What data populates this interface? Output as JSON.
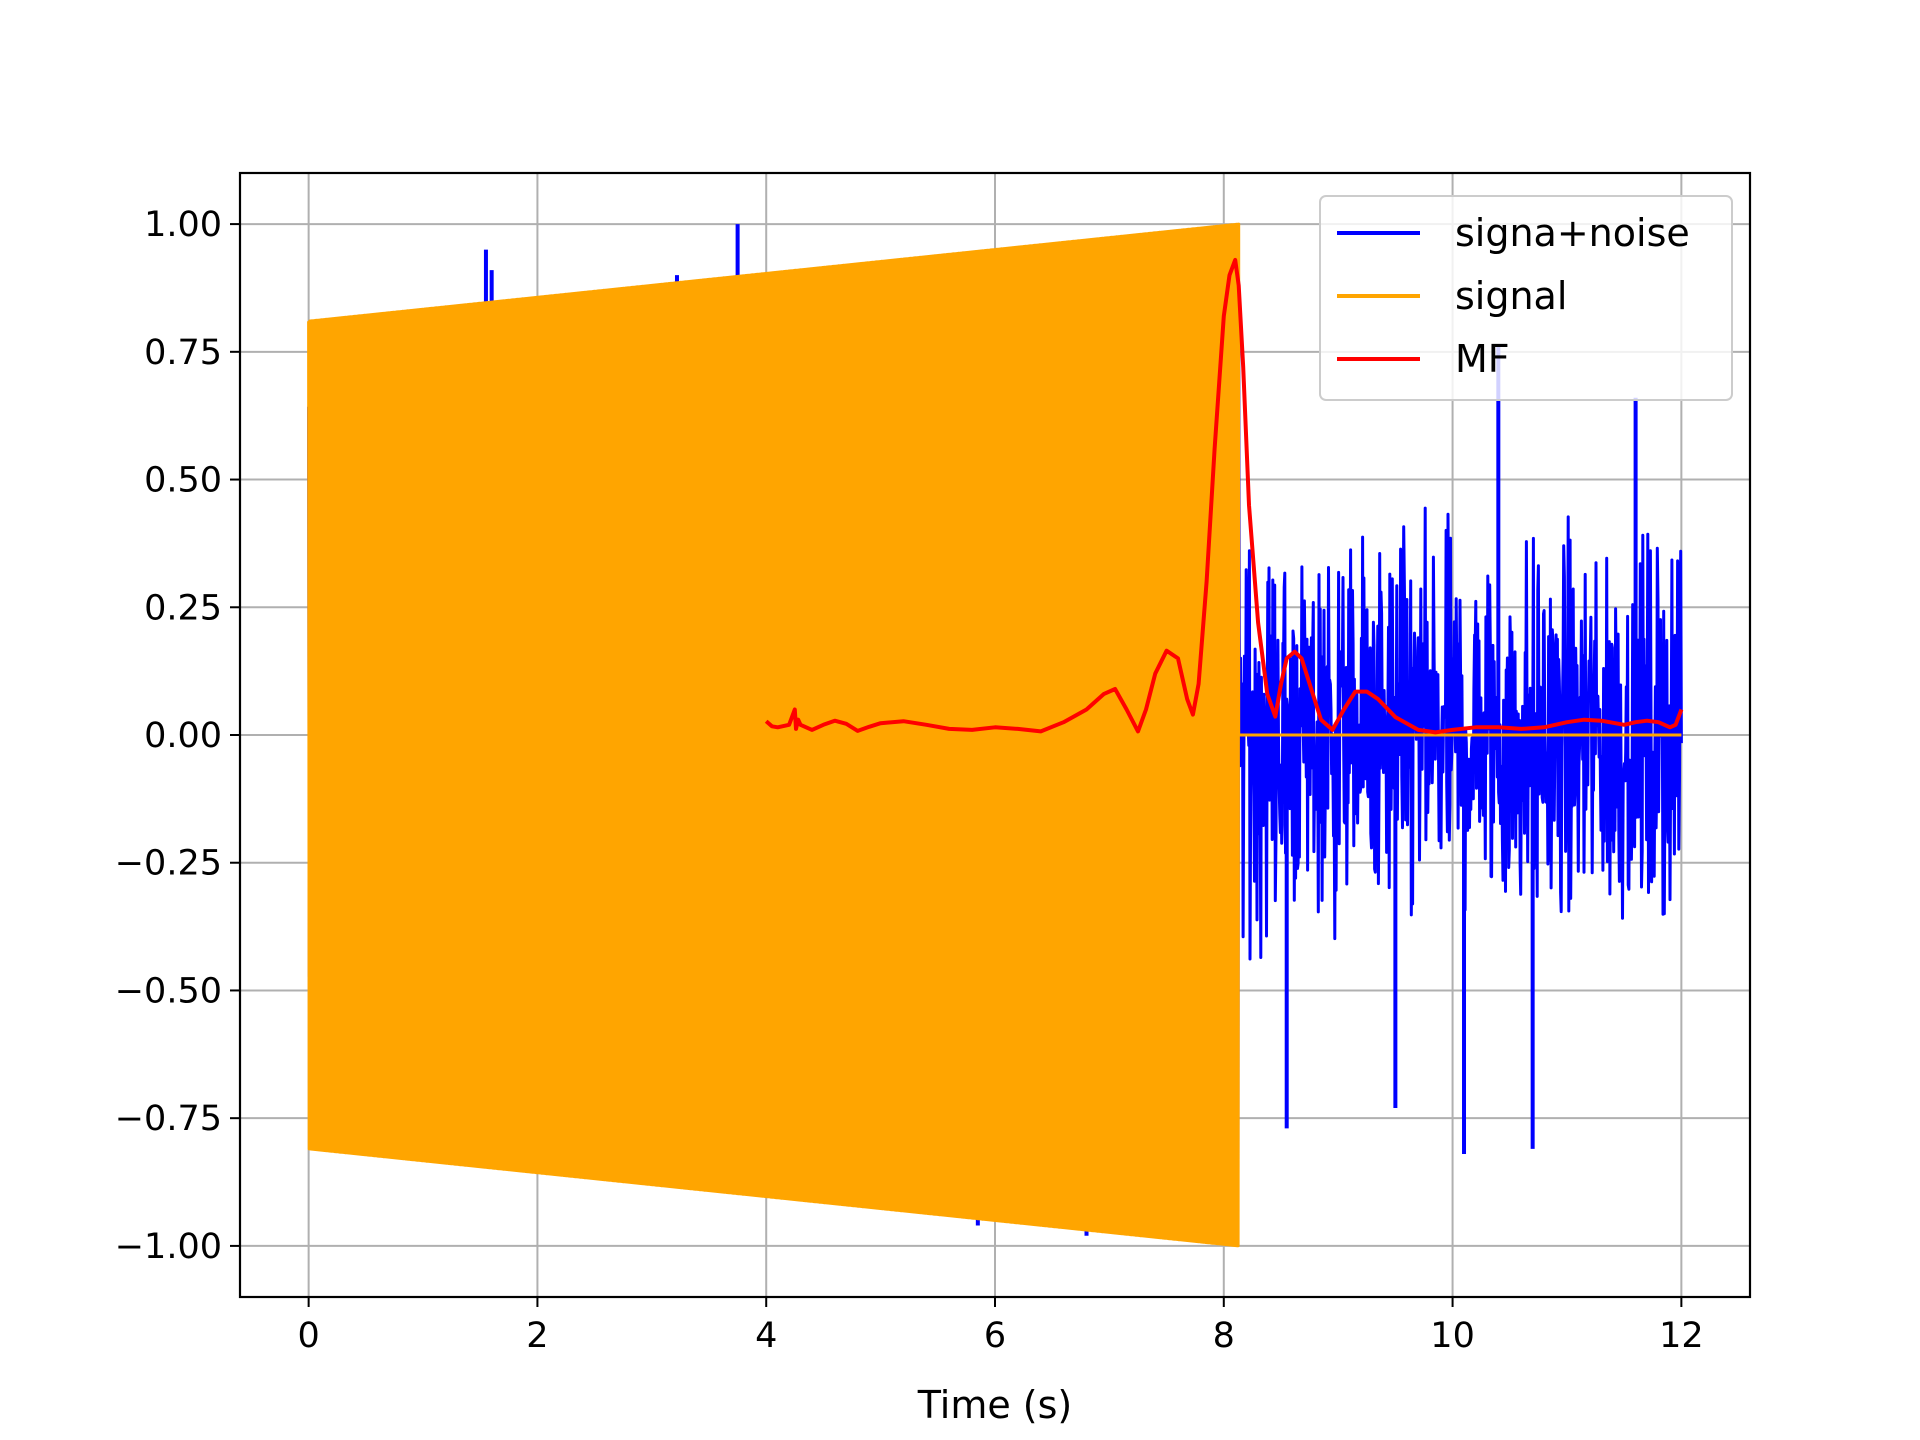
{
  "chart_data": {
    "type": "line",
    "title": "",
    "xlabel": "Time (s)",
    "ylabel": "",
    "xlim": [
      -0.6,
      12.6
    ],
    "ylim": [
      -1.1,
      1.1
    ],
    "x_ticks": [
      0,
      2,
      4,
      6,
      8,
      10,
      12
    ],
    "x_tick_labels": [
      "0",
      "2",
      "4",
      "6",
      "8",
      "10",
      "12"
    ],
    "y_ticks": [
      1.0,
      0.75,
      0.5,
      0.25,
      0.0,
      -0.25,
      -0.5,
      -0.75,
      -1.0
    ],
    "y_tick_labels": [
      "1.00",
      "0.75",
      "0.50",
      "0.25",
      "0.00",
      "−0.25",
      "−0.50",
      "−0.75",
      "−1.00"
    ],
    "grid": true,
    "legend_position": "top-right",
    "series": [
      {
        "name": "signa+noise",
        "color": "#0000ff",
        "description_points": {
          "x": [
            0.0,
            8.13,
            12.0
          ],
          "envelope_max": [
            0.82,
            1.0,
            0.65
          ],
          "noise_after_signal_min": [
            -0.83
          ]
        },
        "spike_points": {
          "x": [
            1.55,
            1.6,
            2.22,
            3.22,
            3.75,
            5.85,
            6.8,
            7.15,
            8.55,
            9.5,
            10.1,
            10.4,
            10.7,
            11.6
          ],
          "y": [
            0.95,
            0.91,
            0.85,
            0.9,
            1.0,
            -0.96,
            -0.98,
            0.96,
            -0.77,
            -0.73,
            -0.82,
            0.76,
            -0.81,
            0.66
          ]
        }
      },
      {
        "name": "signal",
        "color": "#ffa500",
        "start_x": 0.0,
        "end_x": 8.13,
        "amplitude_start": 0.81,
        "amplitude_end": 1.0,
        "zero_after_end_x": [
          8.13,
          12.0
        ],
        "zero_after_end_y": [
          0.0,
          0.0
        ]
      },
      {
        "name": "MF",
        "color": "#ff0000",
        "x": [
          4.0,
          4.05,
          4.1,
          4.2,
          4.25,
          4.26,
          4.28,
          4.3,
          4.4,
          4.5,
          4.6,
          4.7,
          4.8,
          4.9,
          5.0,
          5.2,
          5.4,
          5.6,
          5.8,
          6.0,
          6.2,
          6.4,
          6.6,
          6.8,
          6.95,
          7.05,
          7.15,
          7.25,
          7.32,
          7.4,
          7.5,
          7.6,
          7.68,
          7.73,
          7.78,
          7.85,
          7.92,
          8.0,
          8.05,
          8.1,
          8.13,
          8.17,
          8.22,
          8.3,
          8.38,
          8.45,
          8.5,
          8.55,
          8.62,
          8.68,
          8.75,
          8.85,
          8.95,
          9.05,
          9.15,
          9.25,
          9.35,
          9.5,
          9.7,
          9.85,
          10.0,
          10.2,
          10.4,
          10.6,
          10.8,
          11.0,
          11.15,
          11.3,
          11.5,
          11.6,
          11.7,
          11.8,
          11.9,
          11.95,
          12.0
        ],
        "y": [
          0.027,
          0.017,
          0.015,
          0.02,
          0.05,
          0.012,
          0.03,
          0.02,
          0.01,
          0.02,
          0.028,
          0.022,
          0.008,
          0.016,
          0.023,
          0.027,
          0.02,
          0.012,
          0.01,
          0.015,
          0.012,
          0.007,
          0.025,
          0.05,
          0.08,
          0.09,
          0.05,
          0.007,
          0.05,
          0.12,
          0.165,
          0.15,
          0.07,
          0.04,
          0.1,
          0.3,
          0.56,
          0.82,
          0.9,
          0.93,
          0.88,
          0.72,
          0.45,
          0.22,
          0.08,
          0.036,
          0.1,
          0.15,
          0.163,
          0.15,
          0.1,
          0.03,
          0.01,
          0.05,
          0.085,
          0.085,
          0.07,
          0.035,
          0.01,
          0.005,
          0.01,
          0.015,
          0.015,
          0.012,
          0.015,
          0.025,
          0.03,
          0.028,
          0.02,
          0.025,
          0.028,
          0.025,
          0.015,
          0.02,
          0.05
        ]
      }
    ]
  }
}
